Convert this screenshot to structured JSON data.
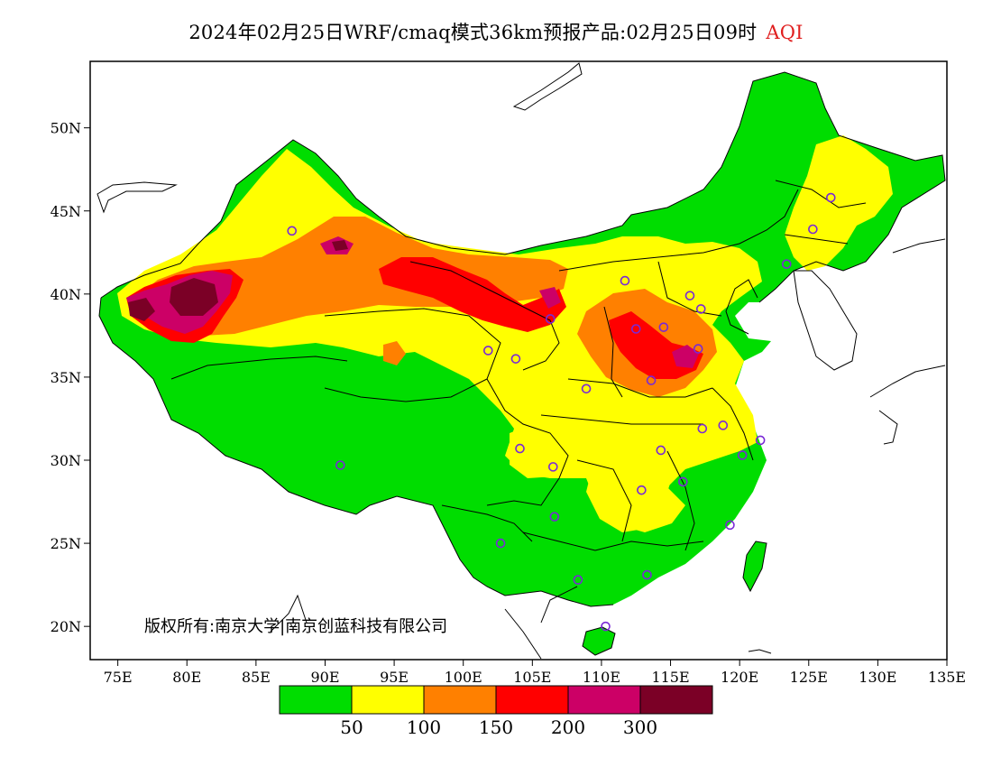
{
  "title": {
    "main": "2024年02月25日WRF/cmaq模式36km预报产品:02月25日09时",
    "variable": "AQI"
  },
  "copyright": "版权所有:南京大学|南京创蓝科技有限公司",
  "axes": {
    "lon_ticks": [
      "75E",
      "80E",
      "85E",
      "90E",
      "95E",
      "100E",
      "105E",
      "110E",
      "115E",
      "120E",
      "125E",
      "130E",
      "135E"
    ],
    "lat_ticks": [
      "50N",
      "45N",
      "40N",
      "35N",
      "30N",
      "25N",
      "20N"
    ],
    "lon_range": [
      73,
      135
    ],
    "lat_range": [
      18,
      54
    ]
  },
  "legend": {
    "colors": [
      "#00dd00",
      "#ffff00",
      "#ff8000",
      "#ff0000",
      "#cc0066",
      "#7b0026"
    ],
    "labels": [
      "50",
      "100",
      "150",
      "200",
      "300"
    ]
  },
  "colors": {
    "good": "#00dd00",
    "moderate": "#ffff00",
    "usg": "#ff8000",
    "unhealthy": "#ff0000",
    "very_unhealthy": "#cc0066",
    "hazardous": "#7b0026",
    "station_marker": "#7a29d6"
  },
  "station_markers": [
    [
      87.6,
      43.8
    ],
    [
      126.6,
      45.8
    ],
    [
      125.3,
      43.9
    ],
    [
      123.4,
      41.8
    ],
    [
      116.4,
      39.9
    ],
    [
      117.2,
      39.1
    ],
    [
      114.5,
      38.0
    ],
    [
      112.5,
      37.9
    ],
    [
      111.7,
      40.8
    ],
    [
      106.3,
      38.5
    ],
    [
      103.8,
      36.1
    ],
    [
      101.8,
      36.6
    ],
    [
      108.9,
      34.3
    ],
    [
      113.6,
      34.8
    ],
    [
      117.0,
      36.7
    ],
    [
      117.3,
      31.9
    ],
    [
      118.8,
      32.1
    ],
    [
      121.5,
      31.2
    ],
    [
      120.2,
      30.3
    ],
    [
      114.3,
      30.6
    ],
    [
      112.9,
      28.2
    ],
    [
      115.9,
      28.7
    ],
    [
      106.6,
      26.6
    ],
    [
      106.5,
      29.6
    ],
    [
      104.1,
      30.7
    ],
    [
      102.7,
      25.0
    ],
    [
      108.3,
      22.8
    ],
    [
      113.3,
      23.1
    ],
    [
      119.3,
      26.1
    ],
    [
      110.3,
      20.0
    ],
    [
      91.1,
      29.7
    ]
  ]
}
